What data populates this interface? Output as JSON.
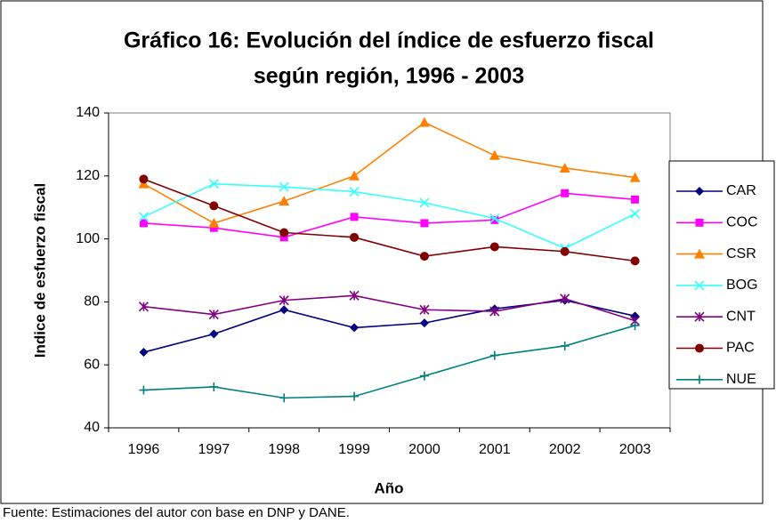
{
  "chart_data": {
    "type": "line",
    "title": [
      "Gráfico 16: Evolución del índice de esfuerzo fiscal",
      "según región, 1996 - 2003"
    ],
    "xlabel": "Año",
    "ylabel": "Indice de esfuerzo fiscal",
    "source": "Fuente: Estimaciones del autor con base en DNP y DANE.",
    "categories": [
      "1996",
      "1997",
      "1998",
      "1999",
      "2000",
      "2001",
      "2002",
      "2003"
    ],
    "ylim": [
      40,
      140
    ],
    "yticks": [
      40,
      60,
      80,
      100,
      120,
      140
    ],
    "grid": false,
    "legend": "right",
    "series": [
      {
        "name": "CAR",
        "color": "#000080",
        "marker": "diamond",
        "values": [
          64,
          69.8,
          77.5,
          71.8,
          73.3,
          77.8,
          80.5,
          75.5
        ]
      },
      {
        "name": "COC",
        "color": "#ff00ff",
        "marker": "square",
        "values": [
          105,
          103.5,
          100.5,
          107,
          105,
          106,
          114.5,
          112.5
        ]
      },
      {
        "name": "CSR",
        "color": "#ff8000",
        "marker": "triangle",
        "values": [
          117.5,
          105,
          112,
          120,
          137,
          126.5,
          122.5,
          119.5
        ]
      },
      {
        "name": "BOG",
        "color": "#33ffff",
        "marker": "x",
        "values": [
          107,
          117.5,
          116.5,
          115,
          111.5,
          106.5,
          97,
          108
        ]
      },
      {
        "name": "CNT",
        "color": "#800080",
        "marker": "star",
        "values": [
          78.5,
          76,
          80.5,
          82,
          77.5,
          77,
          81,
          74
        ]
      },
      {
        "name": "PAC",
        "color": "#800000",
        "marker": "circle",
        "values": [
          119,
          110.5,
          102,
          100.5,
          94.5,
          97.5,
          96,
          93
        ]
      },
      {
        "name": "NUE",
        "color": "#008080",
        "marker": "plus",
        "values": [
          52,
          53,
          49.5,
          50,
          56.5,
          63,
          66,
          72.5
        ]
      }
    ]
  }
}
